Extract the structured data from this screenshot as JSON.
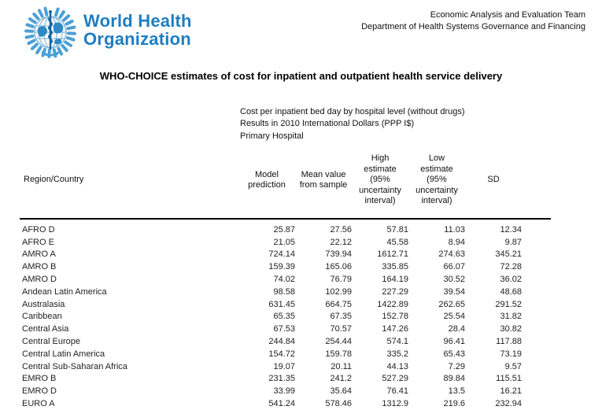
{
  "brand": {
    "org_line1": "World Health",
    "org_line2": "Organization",
    "logo_blue": "#1e7ec1",
    "emblem_icon": "who-emblem"
  },
  "header": {
    "team": "Economic Analysis and Evaluation Team",
    "department": "Department of Health Systems Governance and Financing"
  },
  "title": "WHO-CHOICE estimates of cost for inpatient and outpatient health service delivery",
  "subtitle": {
    "line1": "Cost per inpatient bed day by hospital level (without drugs)",
    "line2": "Results in 2010 International Dollars (PPP I$)",
    "line3": "Primary Hospital"
  },
  "table": {
    "headers": [
      "Region/Country",
      "Model\nprediction",
      "Mean value\nfrom sample",
      "High\nestimate\n(95%\nuncertainty\ninterval)",
      "Low\nestimate\n(95%\nuncertainty\ninterval)",
      "SD"
    ],
    "row_keys": [
      "region",
      "model",
      "mean",
      "high",
      "low",
      "sd"
    ],
    "rows": [
      {
        "region": "AFRO D",
        "model": "25.87",
        "mean": "27.56",
        "high": "57.81",
        "low": "11.03",
        "sd": "12.34"
      },
      {
        "region": "AFRO E",
        "model": "21.05",
        "mean": "22.12",
        "high": "45.58",
        "low": "8.94",
        "sd": "9.87"
      },
      {
        "region": "AMRO A",
        "model": "724.14",
        "mean": "739.94",
        "high": "1612.71",
        "low": "274.63",
        "sd": "345.21"
      },
      {
        "region": "AMRO B",
        "model": "159.39",
        "mean": "165.06",
        "high": "335.85",
        "low": "66.07",
        "sd": "72.28"
      },
      {
        "region": "AMRO D",
        "model": "74.02",
        "mean": "76.79",
        "high": "164.19",
        "low": "30.52",
        "sd": "36.02"
      },
      {
        "region": "Andean Latin America",
        "model": "98.58",
        "mean": "102.99",
        "high": "227.29",
        "low": "39.54",
        "sd": "48.68"
      },
      {
        "region": "Australasia",
        "model": "631.45",
        "mean": "664.75",
        "high": "1422.89",
        "low": "262.65",
        "sd": "291.52"
      },
      {
        "region": "Caribbean",
        "model": "65.35",
        "mean": "67.35",
        "high": "152.78",
        "low": "25.54",
        "sd": "31.82"
      },
      {
        "region": "Central Asia",
        "model": "67.53",
        "mean": "70.57",
        "high": "147.26",
        "low": "28.4",
        "sd": "30.82"
      },
      {
        "region": "Central Europe",
        "model": "244.84",
        "mean": "254.44",
        "high": "574.1",
        "low": "96.41",
        "sd": "117.88"
      },
      {
        "region": "Central Latin America",
        "model": "154.72",
        "mean": "159.78",
        "high": "335.2",
        "low": "65.43",
        "sd": "73.19"
      },
      {
        "region": "Central Sub-Saharan Africa",
        "model": "19.07",
        "mean": "20.11",
        "high": "44.13",
        "low": "7.29",
        "sd": "9.57"
      },
      {
        "region": "EMRO B",
        "model": "231.35",
        "mean": "241.2",
        "high": "527.29",
        "low": "89.84",
        "sd": "115.51"
      },
      {
        "region": "EMRO D",
        "model": "33.99",
        "mean": "35.64",
        "high": "76.41",
        "low": "13.5",
        "sd": "16.21"
      },
      {
        "region": "EURO A",
        "model": "541.24",
        "mean": "578.46",
        "high": "1312.9",
        "low": "219.6",
        "sd": "232.94"
      }
    ]
  }
}
